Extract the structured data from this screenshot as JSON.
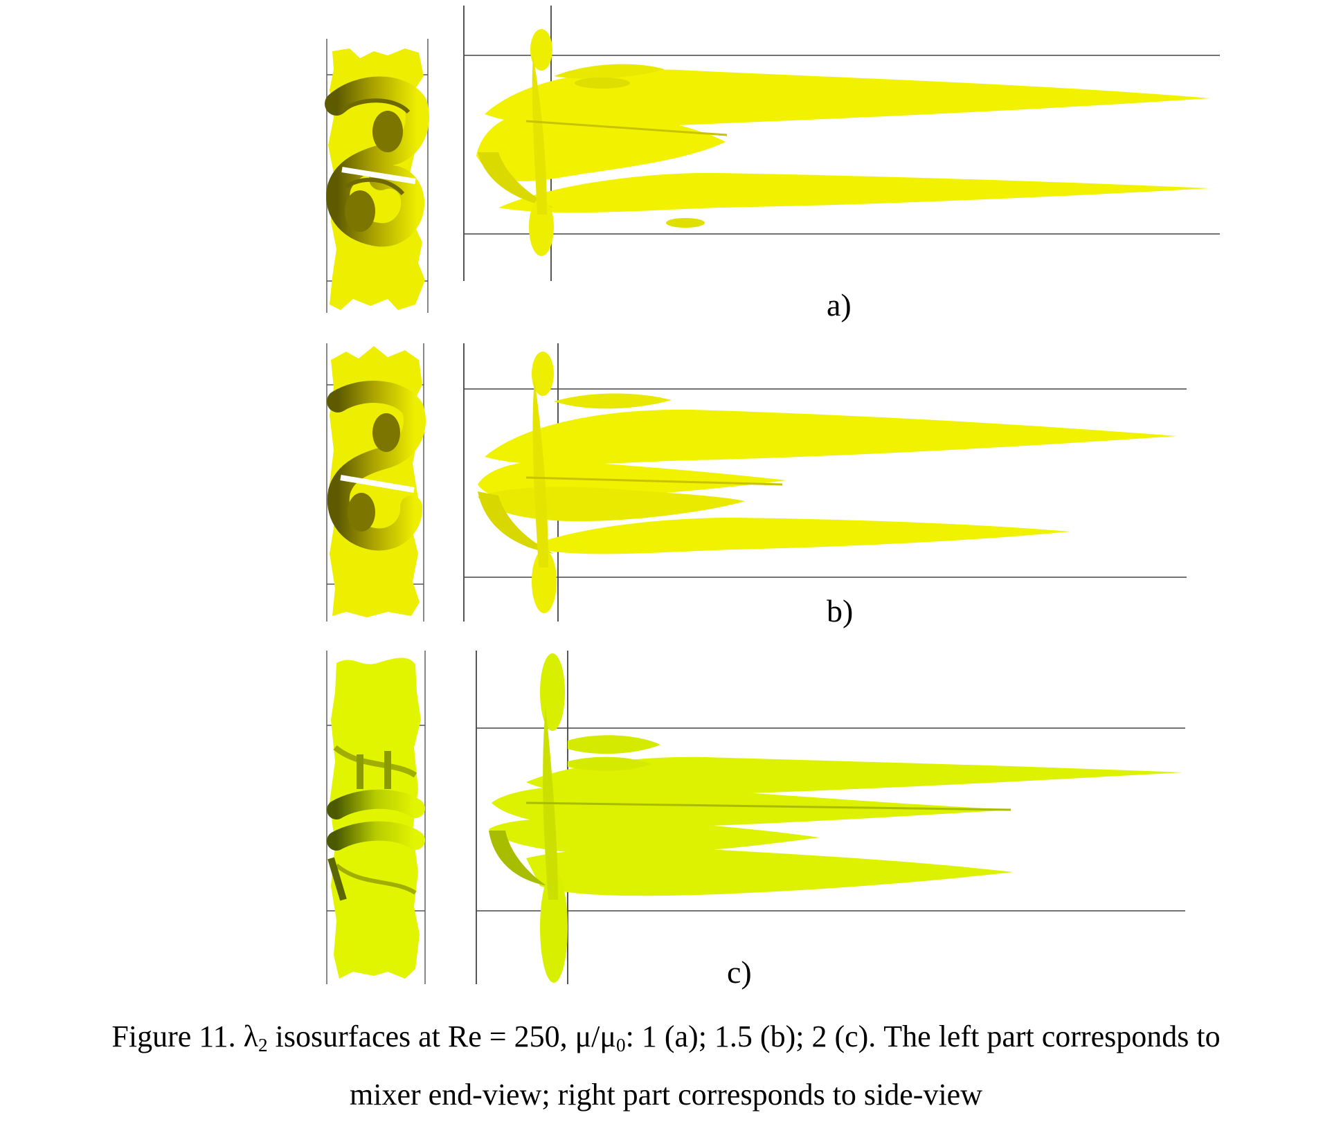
{
  "panels": [
    {
      "id": "a",
      "label": "a)"
    },
    {
      "id": "b",
      "label": "b)"
    },
    {
      "id": "c",
      "label": "c)"
    }
  ],
  "caption": {
    "figure_number": "Figure 11.",
    "lambda_symbol": "λ",
    "lambda_subscript": "2",
    "text_part1": " isosurfaces at Re = 250, ",
    "mu_symbol": "μ/μ",
    "mu_subscript": "0",
    "text_part2": ": 1 (a); 1.5 (b); 2 (c). The left part corresponds to",
    "line2": "mixer end-view; right part corresponds to side-view"
  },
  "colors": {
    "isosurface_a": "#f2f200",
    "isosurface_b": "#f0f200",
    "isosurface_c": "#dcf200",
    "shadow": "#6f6a00",
    "frame_line": "#444444"
  }
}
